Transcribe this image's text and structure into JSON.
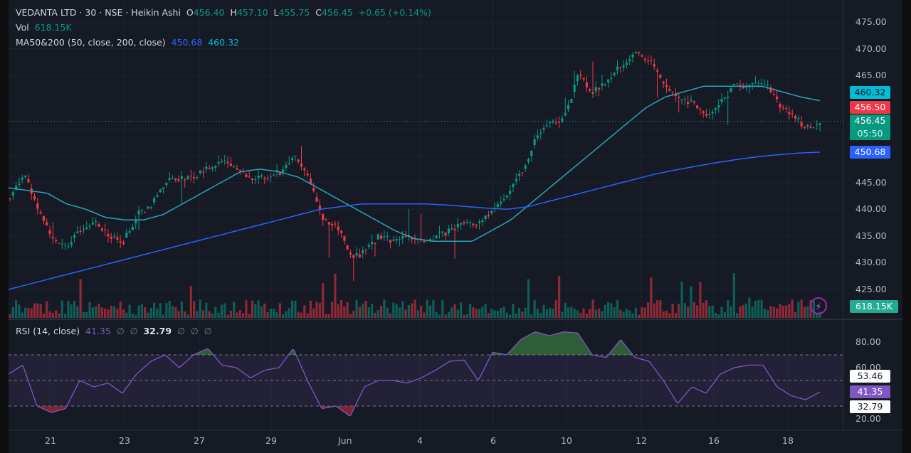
{
  "header": {
    "symbol_line": "VEDANTA LTD · 30 · NSE · Heikin Ashi",
    "o_label": "O",
    "open": "456.40",
    "h_label": "H",
    "high": "457.10",
    "l_label": "L",
    "low": "455.75",
    "c_label": "C",
    "close": "456.45",
    "change": "+0.65 (+0.14%)",
    "vol_label": "Vol",
    "vol_value": "618.15K",
    "ma_label": "MA50&200 (50, close, 200, close)",
    "ma200_value": "450.68",
    "ma50_value": "460.32"
  },
  "rsi_legend": {
    "label": "RSI (14, close)",
    "value": "41.35",
    "n1": "∅",
    "n2": "∅",
    "value2": "32.79",
    "n3": "∅",
    "n4": "∅",
    "n5": "∅"
  },
  "price_axis": [
    "475.00",
    "470.00",
    "465.00",
    "445.00",
    "440.00",
    "435.00",
    "430.00",
    "425.00"
  ],
  "price_tags": {
    "ma50": "460.32",
    "last_red": "456.50",
    "last": "456.45",
    "countdown": "05:50",
    "ma200": "450.68",
    "volume": "618.15K"
  },
  "rsi_axis": [
    "80.00",
    "60.00",
    "20.00"
  ],
  "rsi_tags": {
    "upper": "53.46",
    "rsi": "41.35",
    "lower": "32.79"
  },
  "time_axis": [
    "21",
    "23",
    "27",
    "29",
    "Jun",
    "4",
    "6",
    "10",
    "12",
    "16",
    "18"
  ],
  "colors": {
    "up": "#089981",
    "down": "#f23645",
    "ma50": "#26a6b8",
    "ma200": "#2962ff",
    "rsi": "#7e57c2",
    "bg": "#161a25"
  },
  "chart_data": {
    "type": "candlestick",
    "style": "Heikin Ashi",
    "ylim": [
      420,
      477
    ],
    "close_path": [
      442,
      447,
      440,
      435,
      433,
      436,
      438,
      435,
      434,
      439,
      441,
      445,
      446,
      446,
      448,
      449,
      447,
      446,
      446,
      447,
      450,
      446,
      438,
      437,
      431,
      432,
      435,
      434,
      435,
      434,
      435,
      436,
      438,
      437,
      440,
      443,
      447,
      453,
      456,
      457,
      465,
      462,
      464,
      467,
      469,
      468,
      464,
      461,
      460,
      457,
      460,
      463,
      463,
      464,
      460,
      458,
      455,
      456
    ],
    "ma50_path": [
      444,
      443.5,
      443,
      441,
      440,
      438.5,
      438,
      438,
      439,
      441,
      443,
      445,
      447,
      447.5,
      447,
      446,
      444,
      442,
      440,
      438,
      436,
      434.5,
      434,
      434,
      434,
      436,
      438,
      441,
      444,
      447,
      450,
      453,
      456,
      459,
      461,
      462,
      463,
      463,
      463,
      463,
      462,
      461,
      460.3
    ],
    "ma200_path": [
      425,
      426,
      427,
      428,
      429,
      430,
      431,
      432,
      433,
      434,
      435,
      436,
      437,
      438,
      439,
      440,
      440.5,
      441,
      441,
      441,
      441,
      440.8,
      440.5,
      440.2,
      440,
      440.5,
      441.5,
      442.5,
      443.5,
      444.5,
      445.5,
      446.5,
      447.3,
      448,
      448.7,
      449.3,
      449.8,
      450.2,
      450.5,
      450.68
    ],
    "rsi": {
      "ylim": [
        13,
        100
      ],
      "levels": [
        70,
        50,
        30
      ],
      "values": [
        55,
        62,
        30,
        25,
        28,
        50,
        45,
        48,
        40,
        55,
        65,
        70,
        60,
        70,
        75,
        62,
        60,
        52,
        58,
        60,
        75,
        50,
        28,
        30,
        22,
        45,
        50,
        50,
        48,
        52,
        58,
        65,
        66,
        50,
        72,
        70,
        82,
        88,
        85,
        88,
        87,
        70,
        68,
        82,
        68,
        65,
        50,
        32,
        45,
        40,
        55,
        60,
        62,
        62,
        45,
        38,
        35,
        41
      ]
    }
  }
}
